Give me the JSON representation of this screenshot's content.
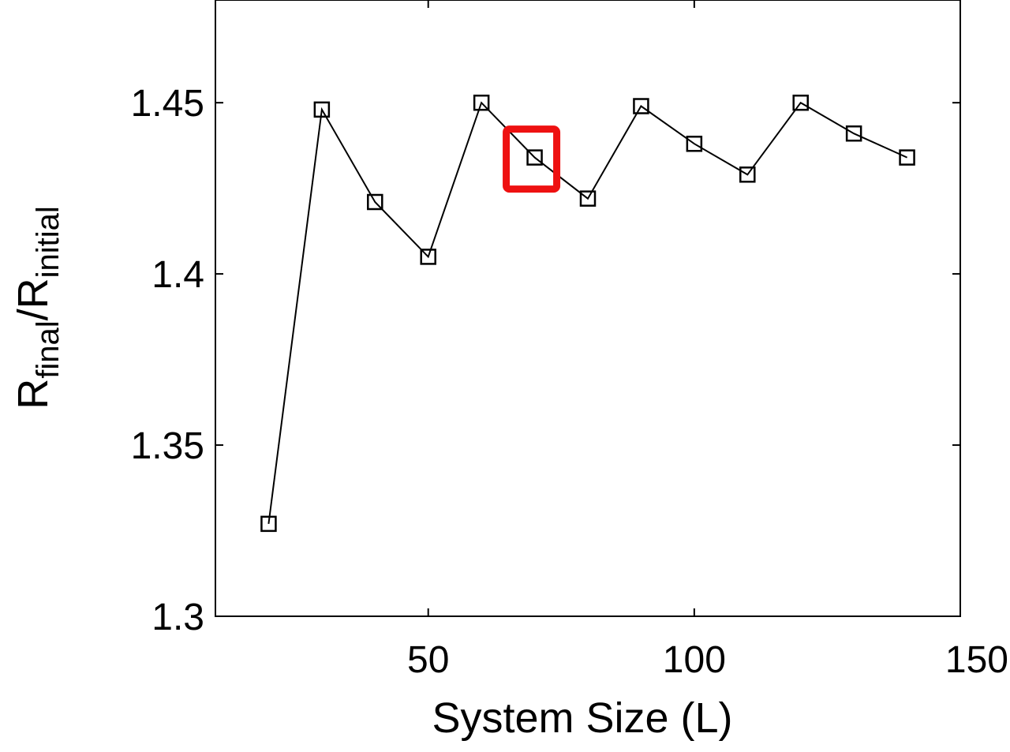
{
  "chart_data": {
    "type": "line",
    "xlabel": "System Size (L)",
    "ylabel": {
      "main": "R",
      "sub_num": "final",
      "sep": "/",
      "main2": "R",
      "sub_den": "initial"
    },
    "xlim": [
      10,
      150
    ],
    "ylim": [
      1.3,
      1.48
    ],
    "xticks": [
      50,
      100,
      150
    ],
    "yticks": [
      1.3,
      1.35,
      1.4,
      1.45
    ],
    "ytick_labels": [
      "1.3",
      "1.35",
      "1.4",
      "1.45"
    ],
    "xtick_labels": [
      "50",
      "100",
      "150"
    ],
    "grid": false,
    "marker": "square-open",
    "line_color": "#000000",
    "highlight_color": "#ee1111",
    "highlight_x": 70,
    "series": [
      {
        "x": [
          20,
          30,
          40,
          50,
          60,
          70,
          80,
          90,
          100,
          110,
          120,
          130,
          140
        ],
        "values": [
          1.327,
          1.448,
          1.421,
          1.405,
          1.45,
          1.434,
          1.422,
          1.449,
          1.438,
          1.429,
          1.45,
          1.441,
          1.434
        ]
      }
    ]
  }
}
